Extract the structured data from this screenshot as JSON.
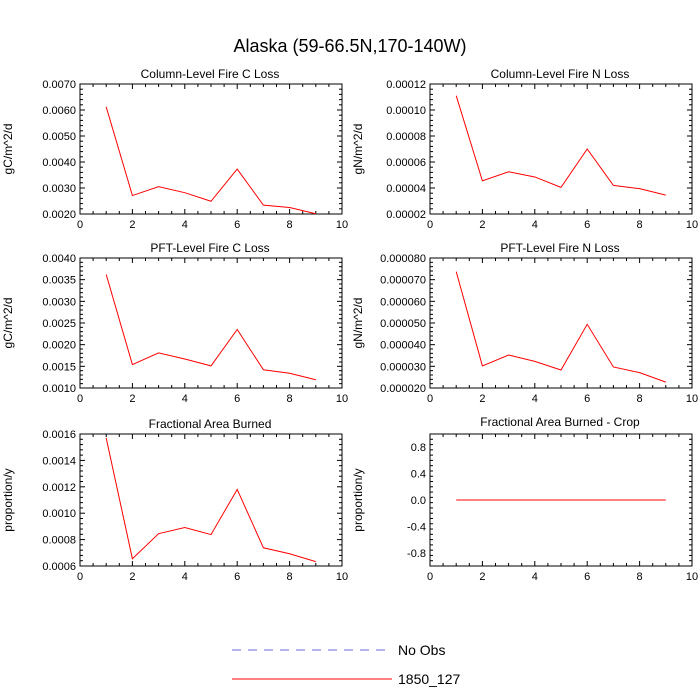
{
  "title": "Alaska (59-66.5N,170-140W)",
  "colors": {
    "model": "#ff0000",
    "obs": "#6a6ad0",
    "axis": "#000000"
  },
  "legend": {
    "items": [
      {
        "label": "No Obs",
        "style": "dashed",
        "color": "#6a6ad0"
      },
      {
        "label": "1850_127",
        "style": "solid",
        "color": "#ff0000"
      }
    ]
  },
  "chart_data": [
    {
      "type": "line",
      "title": "Column-Level Fire C Loss",
      "ylabel": "gC/m^2/d",
      "xlabel": "",
      "xlim": [
        0,
        10
      ],
      "ylim": [
        0.002,
        0.007
      ],
      "xticks": [
        0,
        2,
        4,
        6,
        8,
        10
      ],
      "yticks": [
        "0.0020",
        "0.0030",
        "0.0040",
        "0.0050",
        "0.0060",
        "0.0070"
      ],
      "series": [
        {
          "name": "1850_127",
          "x": [
            1,
            2,
            3,
            4,
            5,
            6,
            7,
            8,
            9
          ],
          "values": [
            0.00612,
            0.00271,
            0.00305,
            0.00282,
            0.00249,
            0.00373,
            0.00234,
            0.00225,
            0.00201
          ]
        }
      ]
    },
    {
      "type": "line",
      "title": "Column-Level Fire N Loss",
      "ylabel": "gN/m^2/d",
      "xlabel": "",
      "xlim": [
        0,
        10
      ],
      "ylim": [
        2e-05,
        0.00012
      ],
      "xticks": [
        0,
        2,
        4,
        6,
        8,
        10
      ],
      "yticks": [
        "0.00002",
        "0.00004",
        "0.00006",
        "0.00008",
        "0.00010",
        "0.00012"
      ],
      "series": [
        {
          "name": "1850_127",
          "x": [
            1,
            2,
            3,
            4,
            5,
            6,
            7,
            8,
            9
          ],
          "values": [
            0.000111,
            4.55e-05,
            5.25e-05,
            4.85e-05,
            4.05e-05,
            7e-05,
            4.2e-05,
            3.95e-05,
            3.45e-05
          ]
        }
      ]
    },
    {
      "type": "line",
      "title": "PFT-Level Fire C Loss",
      "ylabel": "gC/m^2/d",
      "xlabel": "",
      "xlim": [
        0,
        10
      ],
      "ylim": [
        0.001,
        0.004
      ],
      "xticks": [
        0,
        2,
        4,
        6,
        8,
        10
      ],
      "yticks": [
        "0.0010",
        "0.0015",
        "0.0020",
        "0.0025",
        "0.0030",
        "0.0035",
        "0.0040"
      ],
      "series": [
        {
          "name": "1850_127",
          "x": [
            1,
            2,
            3,
            4,
            5,
            6,
            7,
            8,
            9
          ],
          "values": [
            0.00362,
            0.00154,
            0.00181,
            0.00167,
            0.00151,
            0.00235,
            0.00142,
            0.00134,
            0.00119
          ]
        }
      ]
    },
    {
      "type": "line",
      "title": "PFT-Level Fire N Loss",
      "ylabel": "gN/m^2/d",
      "xlabel": "",
      "xlim": [
        0,
        10
      ],
      "ylim": [
        2e-05,
        8e-05
      ],
      "xticks": [
        0,
        2,
        4,
        6,
        8,
        10
      ],
      "yticks": [
        "0.000020",
        "0.000030",
        "0.000040",
        "0.000050",
        "0.000060",
        "0.000070",
        "0.000080"
      ],
      "series": [
        {
          "name": "1850_127",
          "x": [
            1,
            2,
            3,
            4,
            5,
            6,
            7,
            8,
            9
          ],
          "values": [
            7.37e-05,
            3.02e-05,
            3.52e-05,
            3.23e-05,
            2.83e-05,
            4.94e-05,
            2.97e-05,
            2.71e-05,
            2.27e-05
          ]
        }
      ]
    },
    {
      "type": "line",
      "title": "Fractional Area Burned",
      "ylabel": "proportion/y",
      "xlabel": "",
      "xlim": [
        0,
        10
      ],
      "ylim": [
        0.0006,
        0.0016
      ],
      "xticks": [
        0,
        2,
        4,
        6,
        8,
        10
      ],
      "yticks": [
        "0.0006",
        "0.0008",
        "0.0010",
        "0.0012",
        "0.0014",
        "0.0016"
      ],
      "series": [
        {
          "name": "1850_127",
          "x": [
            1,
            2,
            3,
            4,
            5,
            6,
            7,
            8,
            9
          ],
          "values": [
            0.00157,
            0.000655,
            0.000845,
            0.000892,
            0.000838,
            0.00118,
            0.000738,
            0.000693,
            0.000633
          ]
        }
      ]
    },
    {
      "type": "line",
      "title": "Fractional Area Burned - Crop",
      "ylabel": "proportion/y",
      "xlabel": "",
      "xlim": [
        0,
        10
      ],
      "ylim": [
        -1,
        1
      ],
      "xticks": [
        0,
        2,
        4,
        6,
        8,
        10
      ],
      "yticks": [
        "-0.8",
        "-0.4",
        "0.0",
        "0.4",
        "0.8"
      ],
      "series": [
        {
          "name": "1850_127",
          "x": [
            1,
            2,
            3,
            4,
            5,
            6,
            7,
            8,
            9
          ],
          "values": [
            0,
            0,
            0,
            0,
            0,
            0,
            0,
            0,
            0
          ]
        }
      ]
    }
  ]
}
